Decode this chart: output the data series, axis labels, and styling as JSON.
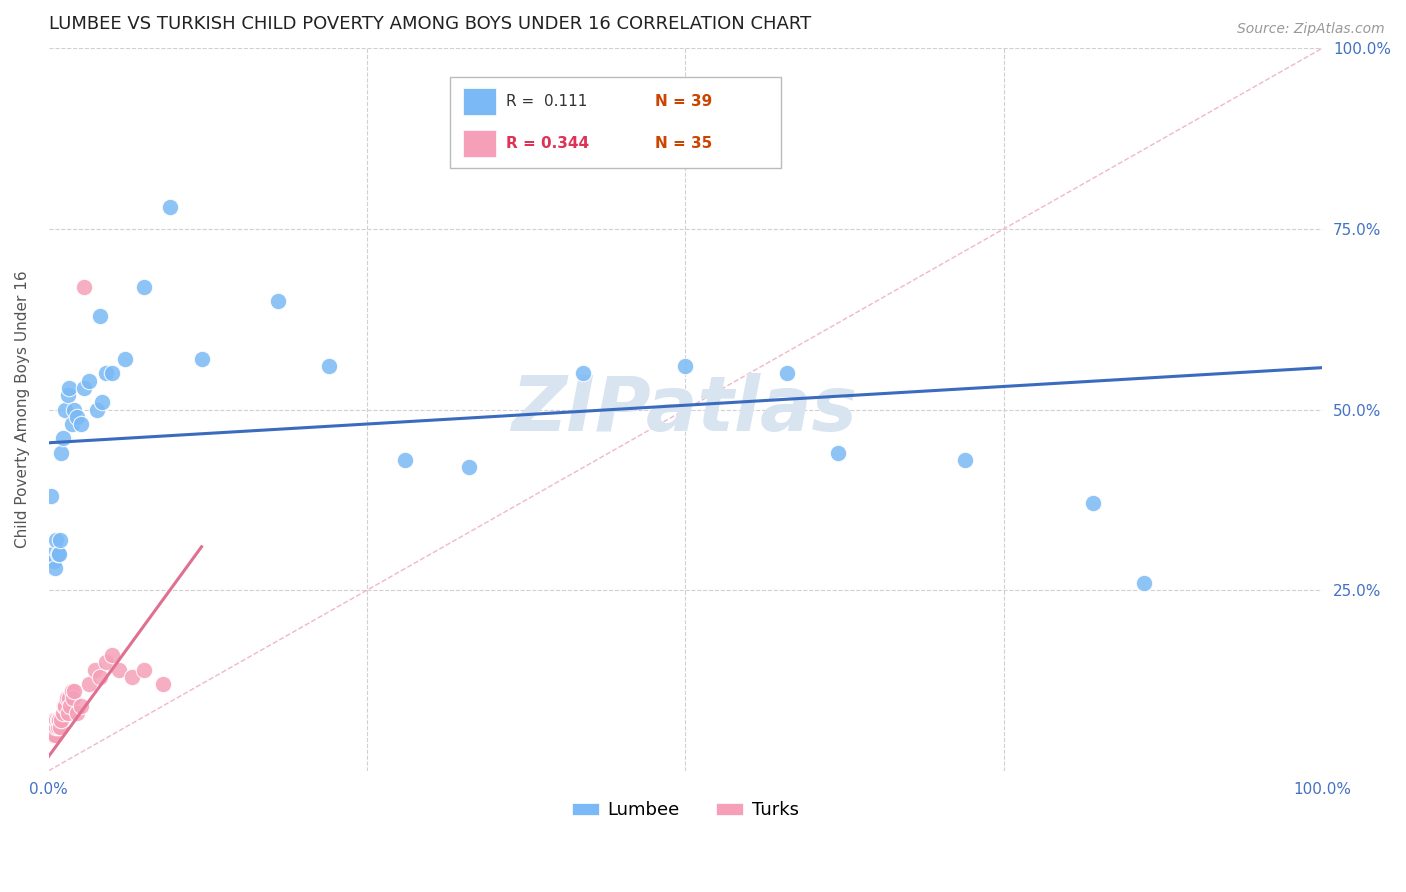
{
  "title": "LUMBEE VS TURKISH CHILD POVERTY AMONG BOYS UNDER 16 CORRELATION CHART",
  "source": "Source: ZipAtlas.com",
  "ylabel": "Child Poverty Among Boys Under 16",
  "xlim": [
    0,
    1
  ],
  "ylim": [
    0,
    1
  ],
  "lumbee_r": 0.111,
  "lumbee_n": 39,
  "turks_r": 0.344,
  "turks_n": 35,
  "lumbee_color": "#7ab9f5",
  "turks_color": "#f5a0b8",
  "lumbee_line_color": "#3b6bbf",
  "turks_line_color": "#e07090",
  "diagonal_color": "#f0b8c8",
  "watermark_color": "#d8e4f0",
  "background_color": "#ffffff",
  "lumbee_x": [
    0.002,
    0.003,
    0.004,
    0.005,
    0.006,
    0.007,
    0.008,
    0.009,
    0.01,
    0.011,
    0.013,
    0.015,
    0.016,
    0.018,
    0.02,
    0.022,
    0.025,
    0.028,
    0.032,
    0.038,
    0.04,
    0.042,
    0.045,
    0.05,
    0.06,
    0.075,
    0.095,
    0.12,
    0.18,
    0.22,
    0.28,
    0.33,
    0.42,
    0.5,
    0.58,
    0.62,
    0.72,
    0.82,
    0.86
  ],
  "lumbee_y": [
    0.38,
    0.3,
    0.29,
    0.28,
    0.32,
    0.3,
    0.3,
    0.32,
    0.44,
    0.46,
    0.5,
    0.52,
    0.53,
    0.48,
    0.5,
    0.49,
    0.48,
    0.53,
    0.54,
    0.5,
    0.63,
    0.51,
    0.55,
    0.55,
    0.57,
    0.67,
    0.78,
    0.57,
    0.65,
    0.56,
    0.43,
    0.42,
    0.55,
    0.56,
    0.55,
    0.44,
    0.43,
    0.37,
    0.26
  ],
  "turks_x": [
    0.002,
    0.003,
    0.003,
    0.004,
    0.004,
    0.005,
    0.006,
    0.006,
    0.007,
    0.007,
    0.008,
    0.009,
    0.01,
    0.011,
    0.012,
    0.013,
    0.014,
    0.015,
    0.016,
    0.017,
    0.018,
    0.019,
    0.02,
    0.022,
    0.025,
    0.028,
    0.032,
    0.036,
    0.04,
    0.045,
    0.05,
    0.055,
    0.065,
    0.075,
    0.09
  ],
  "turks_y": [
    0.05,
    0.05,
    0.06,
    0.06,
    0.07,
    0.05,
    0.06,
    0.07,
    0.06,
    0.07,
    0.07,
    0.06,
    0.07,
    0.08,
    0.09,
    0.09,
    0.1,
    0.08,
    0.1,
    0.09,
    0.11,
    0.1,
    0.11,
    0.08,
    0.09,
    0.67,
    0.12,
    0.14,
    0.13,
    0.15,
    0.16,
    0.14,
    0.13,
    0.14,
    0.12
  ],
  "lumbee_line_x0": 0.0,
  "lumbee_line_x1": 1.0,
  "lumbee_line_y0": 0.454,
  "lumbee_line_y1": 0.558,
  "turks_line_x0": 0.0,
  "turks_line_x1": 0.12,
  "turks_line_y0": 0.02,
  "turks_line_y1": 0.31
}
